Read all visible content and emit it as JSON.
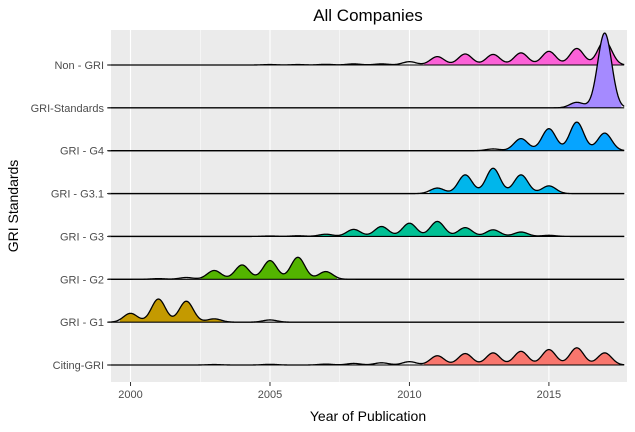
{
  "chart_data": {
    "type": "ridgeline",
    "title": "All Companies",
    "xlabel": "Year of Publication",
    "ylabel": "GRI Standards",
    "xlim": [
      1999.3,
      2017.8
    ],
    "x_ticks": [
      "2000",
      "2005",
      "2010",
      "2015"
    ],
    "grid": true,
    "legend": "none",
    "series": [
      {
        "name": "Citing-GRI",
        "color": "#F8766D",
        "peaks": [
          [
            2003,
            0.02
          ],
          [
            2005,
            0.03
          ],
          [
            2007,
            0.04
          ],
          [
            2008,
            0.07
          ],
          [
            2009,
            0.1
          ],
          [
            2010,
            0.15
          ],
          [
            2011,
            0.42
          ],
          [
            2012,
            0.52
          ],
          [
            2013,
            0.55
          ],
          [
            2014,
            0.62
          ],
          [
            2015,
            0.7
          ],
          [
            2016,
            0.78
          ],
          [
            2017,
            0.55
          ]
        ],
        "fill_from": 2010.5
      },
      {
        "name": "GRI - G1",
        "color": "#C49A00",
        "peaks": [
          [
            2000,
            0.4
          ],
          [
            2001,
            1.05
          ],
          [
            2002,
            0.95
          ],
          [
            2003,
            0.15
          ],
          [
            2005,
            0.1
          ]
        ],
        "fill_from": 1999.6,
        "fill_to": 2003.3
      },
      {
        "name": "GRI - G2",
        "color": "#53B400",
        "peaks": [
          [
            2001,
            0.03
          ],
          [
            2002,
            0.08
          ],
          [
            2003,
            0.4
          ],
          [
            2004,
            0.65
          ],
          [
            2005,
            0.85
          ],
          [
            2006,
            1.0
          ],
          [
            2007,
            0.35
          ]
        ],
        "fill_from": 2002.5,
        "fill_to": 2007.4
      },
      {
        "name": "GRI - G3",
        "color": "#00C094",
        "peaks": [
          [
            2005,
            0.02
          ],
          [
            2006,
            0.03
          ],
          [
            2007,
            0.1
          ],
          [
            2008,
            0.32
          ],
          [
            2009,
            0.45
          ],
          [
            2010,
            0.6
          ],
          [
            2011,
            0.68
          ],
          [
            2012,
            0.4
          ],
          [
            2013,
            0.3
          ],
          [
            2014,
            0.2
          ],
          [
            2015,
            0.05
          ]
        ],
        "fill_from": 2006.6,
        "fill_to": 2015.4
      },
      {
        "name": "GRI - G3.1",
        "color": "#00B6EB",
        "peaks": [
          [
            2011,
            0.25
          ],
          [
            2012,
            0.85
          ],
          [
            2013,
            1.15
          ],
          [
            2014,
            0.85
          ],
          [
            2015,
            0.35
          ]
        ],
        "fill_from": 2010.7,
        "fill_to": 2015.5
      },
      {
        "name": "GRI - G4",
        "color": "#06A4FF",
        "peaks": [
          [
            2013,
            0.08
          ],
          [
            2014,
            0.55
          ],
          [
            2015,
            1.0
          ],
          [
            2016,
            1.3
          ],
          [
            2017,
            0.8
          ]
        ],
        "fill_from": 2013.3,
        "fill_to": 2017.6
      },
      {
        "name": "GRI-Standards",
        "color": "#A58AFF",
        "peaks": [
          [
            2016,
            0.25
          ],
          [
            2017,
            3.4
          ]
        ],
        "fill_from": 2015.5,
        "fill_to": 2017.6
      },
      {
        "name": "Non - GRI",
        "color": "#FB61D7",
        "peaks": [
          [
            2005,
            0.02
          ],
          [
            2006,
            0.02
          ],
          [
            2007,
            0.03
          ],
          [
            2008,
            0.05
          ],
          [
            2009,
            0.05
          ],
          [
            2010,
            0.15
          ],
          [
            2011,
            0.38
          ],
          [
            2012,
            0.5
          ],
          [
            2013,
            0.48
          ],
          [
            2014,
            0.55
          ],
          [
            2015,
            0.62
          ],
          [
            2016,
            0.75
          ],
          [
            2017,
            1.1
          ]
        ],
        "fill_from": 2010.5,
        "fill_to": 2017.6
      }
    ]
  }
}
